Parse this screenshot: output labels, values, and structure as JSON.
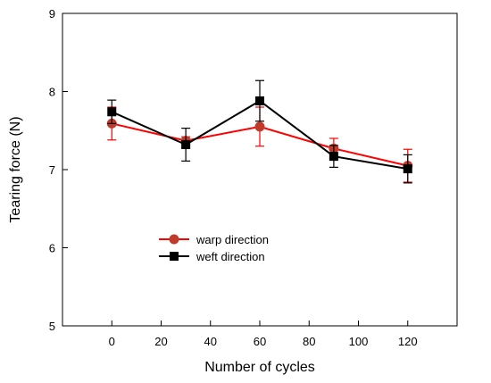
{
  "chart_data": {
    "type": "line",
    "xlabel": "Number  of  cycles",
    "ylabel": "Tearing force (N)",
    "xlim": [
      -20,
      140
    ],
    "ylim": [
      5,
      9
    ],
    "x_ticks": [
      0,
      20,
      40,
      60,
      80,
      100,
      120
    ],
    "y_ticks": [
      5,
      6,
      7,
      8,
      9
    ],
    "grid": false,
    "legend_position": "lower-left-center",
    "x": [
      0,
      30,
      60,
      90,
      120
    ],
    "series": [
      {
        "name": "warp direction",
        "color": "#ff0000",
        "marker": "circle",
        "marker_color": "#c0392b",
        "values": [
          7.59,
          7.37,
          7.55,
          7.27,
          7.05
        ],
        "error": [
          0.21,
          0.05,
          0.25,
          0.13,
          0.21
        ]
      },
      {
        "name": "weft direction",
        "color": "#000000",
        "marker": "square",
        "marker_color": "#000000",
        "values": [
          7.74,
          7.32,
          7.88,
          7.17,
          7.01
        ],
        "error": [
          0.15,
          0.21,
          0.26,
          0.14,
          0.18
        ]
      }
    ]
  }
}
